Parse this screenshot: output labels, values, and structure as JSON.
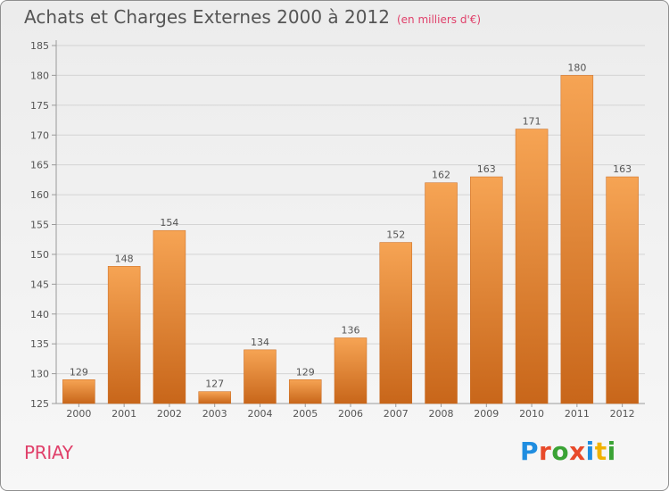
{
  "title": "Achats et Charges Externes 2000 à 2012",
  "unit": "(en milliers d'€)",
  "commune": "PRIAY",
  "logo": {
    "text": "Proxiti",
    "colors": [
      "#1f8de0",
      "#e84a2a",
      "#3aa335",
      "#e84a2a",
      "#1f8de0",
      "#f1b200",
      "#3aa335"
    ]
  },
  "colors": {
    "bar_top": "#f6a454",
    "bar_bottom": "#c8661a",
    "accent": "#e0406a",
    "text": "#555555",
    "grid": "#d4d4d4"
  },
  "chart_data": {
    "type": "bar",
    "title": "Achats et Charges Externes 2000 à 2012",
    "subtitle": "(en milliers d'€)",
    "categories": [
      "2000",
      "2001",
      "2002",
      "2003",
      "2004",
      "2005",
      "2006",
      "2007",
      "2008",
      "2009",
      "2010",
      "2011",
      "2012"
    ],
    "values": [
      129,
      148,
      154,
      127,
      134,
      129,
      136,
      152,
      162,
      163,
      171,
      180,
      163
    ],
    "ylim": [
      125,
      185
    ],
    "yticks": [
      125,
      130,
      135,
      140,
      145,
      150,
      155,
      160,
      165,
      170,
      175,
      180,
      185
    ],
    "grid": true,
    "legend": "none"
  }
}
